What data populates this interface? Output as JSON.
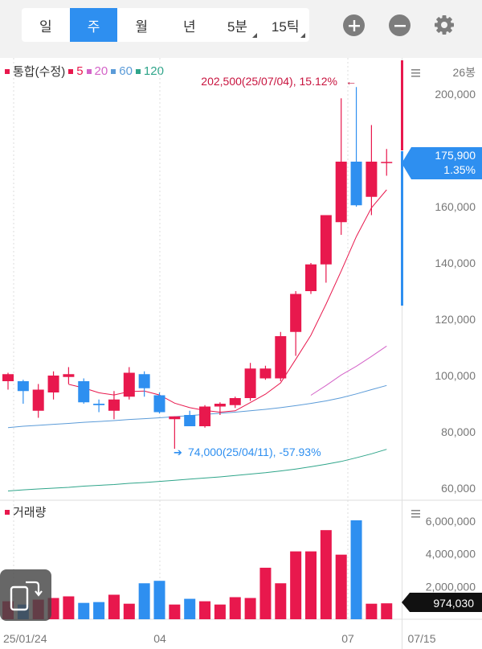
{
  "toolbar": {
    "tabs": [
      {
        "label": "일",
        "active": false,
        "has_menu": false
      },
      {
        "label": "주",
        "active": true,
        "has_menu": false
      },
      {
        "label": "월",
        "active": false,
        "has_menu": false
      },
      {
        "label": "년",
        "active": false,
        "has_menu": false
      },
      {
        "label": "5분",
        "active": false,
        "has_menu": true
      },
      {
        "label": "15틱",
        "active": false,
        "has_menu": true
      }
    ],
    "zoom_in_icon": "plus-circle-icon",
    "zoom_out_icon": "minus-circle-icon",
    "settings_icon": "gear-icon"
  },
  "legend": {
    "main_label": "통합(수정)",
    "ma": [
      {
        "label": "5",
        "color": "#e8184d"
      },
      {
        "label": "20",
        "color": "#d463c8"
      },
      {
        "label": "60",
        "color": "#5b9bd8"
      },
      {
        "label": "120",
        "color": "#2fa58a"
      }
    ]
  },
  "volume_label": "거래량",
  "colors": {
    "up": "#e8184d",
    "down": "#2e8ff0",
    "grid": "#e3e3e3"
  },
  "chart_data": {
    "type": "candlestick",
    "periods_label": "26봉",
    "x_tick_labels": [
      "25/01/24",
      "04",
      "07",
      "07/15"
    ],
    "ylim": [
      55000,
      210000
    ],
    "y_ticks": [
      60000,
      80000,
      100000,
      120000,
      140000,
      160000,
      180000,
      200000
    ],
    "y_tick_labels": [
      "60,000",
      "80,000",
      "100,000",
      "120,000",
      "140,000",
      "160,000",
      "",
      "200,000"
    ],
    "candles": [
      {
        "o": 98000,
        "h": 101000,
        "l": 95000,
        "c": 100500
      },
      {
        "o": 98000,
        "h": 98500,
        "l": 90000,
        "c": 94500
      },
      {
        "o": 87500,
        "h": 97000,
        "l": 85000,
        "c": 95000
      },
      {
        "o": 94000,
        "h": 101500,
        "l": 91500,
        "c": 100000
      },
      {
        "o": 99500,
        "h": 103000,
        "l": 97000,
        "c": 100500
      },
      {
        "o": 98000,
        "h": 99000,
        "l": 90000,
        "c": 90500
      },
      {
        "o": 90000,
        "h": 91500,
        "l": 87000,
        "c": 89500
      },
      {
        "o": 87500,
        "h": 94500,
        "l": 84500,
        "c": 91500
      },
      {
        "o": 92500,
        "h": 103000,
        "l": 91500,
        "c": 101000
      },
      {
        "o": 100500,
        "h": 101500,
        "l": 92500,
        "c": 95500
      },
      {
        "o": 93000,
        "h": 94000,
        "l": 86500,
        "c": 87000
      },
      {
        "o": 84500,
        "h": 85500,
        "l": 74000,
        "c": 85500
      },
      {
        "o": 86000,
        "h": 87500,
        "l": 82000,
        "c": 82000
      },
      {
        "o": 82000,
        "h": 89500,
        "l": 81500,
        "c": 89000
      },
      {
        "o": 89000,
        "h": 90500,
        "l": 86000,
        "c": 90000
      },
      {
        "o": 89500,
        "h": 92500,
        "l": 88500,
        "c": 92000
      },
      {
        "o": 92000,
        "h": 104500,
        "l": 91000,
        "c": 102500
      },
      {
        "o": 99000,
        "h": 103500,
        "l": 98500,
        "c": 102500
      },
      {
        "o": 99000,
        "h": 115500,
        "l": 98000,
        "c": 114000
      },
      {
        "o": 115500,
        "h": 130000,
        "l": 107000,
        "c": 129000
      },
      {
        "o": 130000,
        "h": 140000,
        "l": 129000,
        "c": 139500
      },
      {
        "o": 139500,
        "h": 157000,
        "l": 133000,
        "c": 157000
      },
      {
        "o": 154500,
        "h": 198500,
        "l": 150000,
        "c": 176000
      },
      {
        "o": 176000,
        "h": 202500,
        "l": 160000,
        "c": 160500
      },
      {
        "o": 163500,
        "h": 189000,
        "l": 157000,
        "c": 176000
      },
      {
        "o": 175900,
        "h": 180500,
        "l": 171000,
        "c": 175900
      }
    ],
    "ma": [
      {
        "name": "5",
        "values": [
          null,
          null,
          null,
          null,
          96900,
          95600,
          93900,
          93100,
          94300,
          94500,
          93100,
          90200,
          88600,
          87600,
          87000,
          87500,
          90400,
          93400,
          97400,
          105800,
          114300,
          125400,
          137100,
          149400,
          159600,
          166000
        ]
      },
      {
        "name": "20",
        "values": [
          null,
          null,
          null,
          null,
          null,
          null,
          null,
          null,
          null,
          null,
          null,
          null,
          null,
          null,
          null,
          null,
          null,
          null,
          null,
          null,
          93000,
          96500,
          100200,
          103300,
          106800,
          110500
        ]
      },
      {
        "name": "60",
        "values": [
          81500,
          82000,
          82300,
          82700,
          83000,
          83400,
          83700,
          84000,
          84400,
          84700,
          85000,
          85400,
          85800,
          86200,
          86600,
          87000,
          87500,
          88000,
          88600,
          89300,
          90100,
          91000,
          92100,
          93500,
          95000,
          96500
        ]
      },
      {
        "name": "120",
        "values": [
          59000,
          59400,
          59700,
          60000,
          60300,
          60700,
          61000,
          61300,
          61700,
          62000,
          62400,
          62800,
          63200,
          63600,
          64000,
          64500,
          65000,
          65500,
          66100,
          66800,
          67600,
          68500,
          69500,
          70800,
          72200,
          73800
        ]
      }
    ],
    "volume": {
      "ylim": [
        0,
        6600000
      ],
      "y_ticks": [
        2000000,
        4000000,
        6000000
      ],
      "y_tick_labels": [
        "2,000,000",
        "4,000,000",
        "6,000,000"
      ],
      "values": [
        1100000,
        900000,
        1200000,
        1300000,
        1400000,
        1000000,
        1050000,
        1500000,
        950000,
        2200000,
        2350000,
        900000,
        1250000,
        1100000,
        900000,
        1350000,
        1300000,
        3150000,
        2200000,
        4150000,
        4150000,
        5450000,
        3950000,
        6050000,
        950000,
        974030
      ],
      "current_label": "974,030"
    },
    "annotations": {
      "high_text": "202,500(25/07/04), 15.12%",
      "high_arrow": "←",
      "low_text": "74,000(25/04/11), -57.93%",
      "low_arrow": "➔",
      "current_price": "175,900",
      "current_pct": "1.35%"
    }
  }
}
